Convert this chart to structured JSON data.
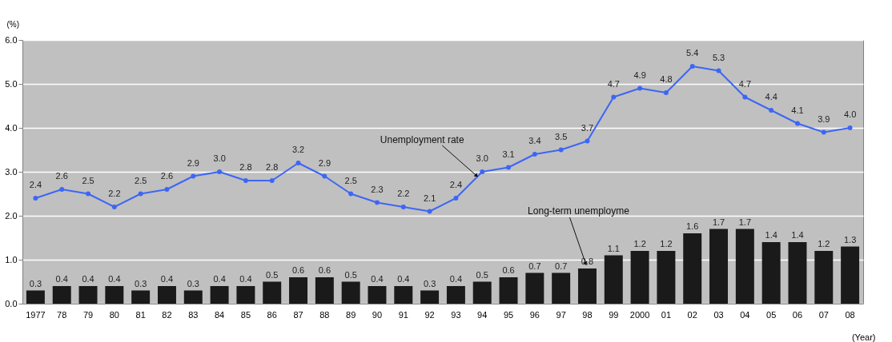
{
  "chart_data": {
    "type": "bar",
    "categories": [
      "1977",
      "78",
      "79",
      "80",
      "81",
      "82",
      "83",
      "84",
      "85",
      "86",
      "87",
      "88",
      "89",
      "90",
      "91",
      "92",
      "93",
      "94",
      "95",
      "96",
      "97",
      "98",
      "99",
      "2000",
      "01",
      "02",
      "03",
      "04",
      "05",
      "06",
      "07",
      "08"
    ],
    "series": [
      {
        "color": "#1a1a1a",
        "values": [
          0.3,
          0.4,
          0.4,
          0.4,
          0.3,
          0.4,
          0.3,
          0.4,
          0.4,
          0.5,
          0.6,
          0.6,
          0.5,
          0.4,
          0.4,
          0.3,
          0.4,
          0.5,
          0.6,
          0.7,
          0.7,
          0.8,
          1.1,
          1.2,
          1.2,
          1.6,
          1.7,
          1.7,
          1.4,
          1.4,
          1.2,
          1.3
        ],
        "value_labels": [
          "0.3",
          "0.4",
          "0.4",
          "0.4",
          "0.3",
          "0.4",
          "0.3",
          "0.4",
          "0.4",
          "0.5",
          "0.6",
          "0.6",
          "0.5",
          "0.4",
          "0.4",
          "0.3",
          "0.4",
          "0.5",
          "0.6",
          "0.7",
          "0.7",
          "0.8",
          "1.1",
          "1.2",
          "1.2",
          "1.6",
          "1.7",
          "1.7",
          "1.4",
          "1.4",
          "1.2",
          "1.3"
        ]
      },
      {
        "type": "line",
        "color": "#3d66f5",
        "marker": "circle",
        "values": [
          2.4,
          2.6,
          2.5,
          2.2,
          2.5,
          2.6,
          2.9,
          3.0,
          2.8,
          2.8,
          3.2,
          2.9,
          2.5,
          2.3,
          2.2,
          2.1,
          2.4,
          3.0,
          3.1,
          3.4,
          3.5,
          3.7,
          4.7,
          4.9,
          4.8,
          5.4,
          5.3,
          4.7,
          4.4,
          4.1,
          3.9,
          4.0
        ],
        "value_labels": [
          "2.4",
          "2.6",
          "2.5",
          "2.2",
          "2.5",
          "2.6",
          "2.9",
          "3.0",
          "2.8",
          "2.8",
          "3.2",
          "2.9",
          "2.5",
          "2.3",
          "2.2",
          "2.1",
          "2.4",
          "3.0",
          "3.1",
          "3.4",
          "3.5",
          "3.7",
          "4.7",
          "4.9",
          "4.8",
          "5.4",
          "5.3",
          "4.7",
          "4.4",
          "4.1",
          "3.9",
          "4.0"
        ]
      }
    ],
    "ylabel": "(%)",
    "xlabel": "(Year)",
    "ylim": [
      0,
      6
    ],
    "yticks": [
      {
        "value": 0,
        "label": "0.0"
      },
      {
        "value": 1,
        "label": "1.0"
      },
      {
        "value": 2,
        "label": "2.0"
      },
      {
        "value": 3,
        "label": "3.0"
      },
      {
        "value": 4,
        "label": "4.0"
      },
      {
        "value": 5,
        "label": "5.0"
      },
      {
        "value": 6,
        "label": "6.0"
      }
    ],
    "grid": "y",
    "legend": false,
    "annotations": [
      {
        "text": "Unemployment rate",
        "x": "94",
        "y": 3.0
      },
      {
        "text": "Long-term unemployme",
        "x": "98",
        "y": 0.8
      }
    ]
  }
}
